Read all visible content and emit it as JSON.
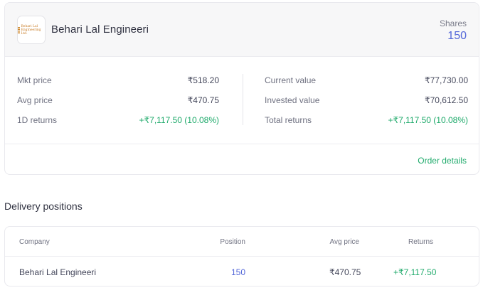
{
  "holding": {
    "company_name": "Behari Lal Engineeri",
    "logo_text": [
      "Behari Lal",
      "Engineering Ltd."
    ],
    "shares_label": "Shares",
    "shares_value": "150",
    "left_stats": [
      {
        "label": "Mkt price",
        "value": "₹518.20"
      },
      {
        "label": "Avg price",
        "value": "₹470.75"
      },
      {
        "label": "1D returns",
        "value": "+₹7,117.50 (10.08%)"
      }
    ],
    "right_stats": [
      {
        "label": "Current value",
        "value": "₹77,730.00"
      },
      {
        "label": "Invested value",
        "value": "₹70,612.50"
      },
      {
        "label": "Total returns",
        "value": "+₹7,117.50 (10.08%)"
      }
    ],
    "order_details_label": "Order details"
  },
  "delivery": {
    "title": "Delivery positions",
    "columns": [
      "Company",
      "Position",
      "Avg price",
      "Returns"
    ],
    "rows": [
      {
        "company": "Behari Lal Engineeri",
        "position": "150",
        "avg_price": "₹470.75",
        "returns": "+₹7,117.50"
      }
    ]
  },
  "colors": {
    "accent_blue": "#5367d9",
    "positive_green": "#1faa6b",
    "logo_orange": "#c77a22"
  }
}
